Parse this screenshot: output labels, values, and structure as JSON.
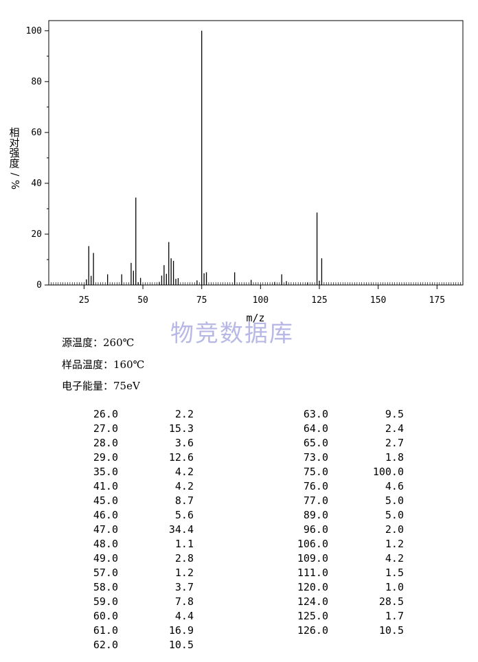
{
  "chart_data": {
    "type": "bar",
    "xlabel": "m/z",
    "ylabel": [
      "相",
      "对",
      "强",
      "度",
      "/",
      "%"
    ],
    "xlim": [
      10,
      186
    ],
    "ylim": [
      0,
      104
    ],
    "xticks": [
      25,
      50,
      75,
      100,
      125,
      150,
      175
    ],
    "yticks": [
      0,
      20,
      40,
      60,
      80,
      100
    ],
    "x": [
      26,
      27,
      28,
      29,
      35,
      41,
      45,
      46,
      47,
      48,
      49,
      57,
      58,
      59,
      60,
      61,
      62,
      63,
      64,
      65,
      73,
      75,
      76,
      77,
      89,
      96,
      106,
      109,
      111,
      120,
      124,
      125,
      126
    ],
    "values": [
      2.2,
      15.3,
      3.6,
      12.6,
      4.2,
      4.2,
      8.7,
      5.6,
      34.4,
      1.1,
      2.8,
      1.2,
      3.7,
      7.8,
      4.4,
      16.9,
      10.5,
      9.5,
      2.4,
      2.7,
      1.8,
      100.0,
      4.6,
      5.0,
      5.0,
      2.0,
      1.2,
      4.2,
      1.5,
      1.0,
      28.5,
      1.7,
      10.5
    ]
  },
  "watermark": "物竞数据库",
  "conditions": {
    "source_temp": "源温度：260℃",
    "sample_temp": "样品温度：160℃",
    "electron_energy": "电子能量：75eV"
  },
  "peak_table": {
    "left": [
      [
        "26.0",
        "2.2"
      ],
      [
        "27.0",
        "15.3"
      ],
      [
        "28.0",
        "3.6"
      ],
      [
        "29.0",
        "12.6"
      ],
      [
        "35.0",
        "4.2"
      ],
      [
        "41.0",
        "4.2"
      ],
      [
        "45.0",
        "8.7"
      ],
      [
        "46.0",
        "5.6"
      ],
      [
        "47.0",
        "34.4"
      ],
      [
        "48.0",
        "1.1"
      ],
      [
        "49.0",
        "2.8"
      ],
      [
        "57.0",
        "1.2"
      ],
      [
        "58.0",
        "3.7"
      ],
      [
        "59.0",
        "7.8"
      ],
      [
        "60.0",
        "4.4"
      ],
      [
        "61.0",
        "16.9"
      ],
      [
        "62.0",
        "10.5"
      ]
    ],
    "right": [
      [
        "63.0",
        "9.5"
      ],
      [
        "64.0",
        "2.4"
      ],
      [
        "65.0",
        "2.7"
      ],
      [
        "73.0",
        "1.8"
      ],
      [
        "75.0",
        "100.0"
      ],
      [
        "76.0",
        "4.6"
      ],
      [
        "77.0",
        "5.0"
      ],
      [
        "89.0",
        "5.0"
      ],
      [
        "96.0",
        "2.0"
      ],
      [
        "106.0",
        "1.2"
      ],
      [
        "109.0",
        "4.2"
      ],
      [
        "111.0",
        "1.5"
      ],
      [
        "120.0",
        "1.0"
      ],
      [
        "124.0",
        "28.5"
      ],
      [
        "125.0",
        "1.7"
      ],
      [
        "126.0",
        "10.5"
      ]
    ]
  }
}
